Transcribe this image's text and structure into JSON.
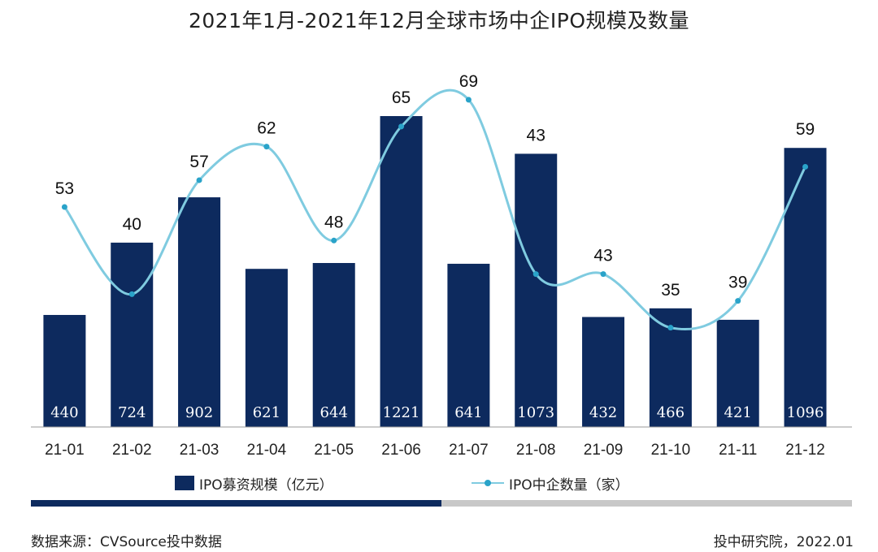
{
  "title": "2021年1月-2021年12月全球市场中企IPO规模及数量",
  "chart_data": {
    "type": "bar+line",
    "categories": [
      "21-01",
      "21-02",
      "21-03",
      "21-04",
      "21-05",
      "21-06",
      "21-07",
      "21-08",
      "21-09",
      "21-10",
      "21-11",
      "21-12"
    ],
    "series": [
      {
        "name": "IPO募资规模（亿元）",
        "type": "bar",
        "values": [
          440,
          724,
          902,
          621,
          644,
          1221,
          641,
          1073,
          432,
          466,
          421,
          1096
        ]
      },
      {
        "name": "IPO中企数量（家）",
        "type": "line",
        "values": [
          53,
          40,
          57,
          62,
          48,
          65,
          69,
          43,
          43,
          35,
          39,
          59
        ]
      }
    ],
    "bar_range": [
      0,
      1300
    ],
    "line_range": [
      0,
      80
    ]
  },
  "legend": {
    "bar_label": "IPO募资规模（亿元）",
    "line_label": "IPO中企数量（家）"
  },
  "progress_fraction": 0.5,
  "footer": {
    "source": "数据来源：CVSource投中数据",
    "credit": "投中研究院，2022.01"
  },
  "colors": {
    "bar": "#0d2a5e",
    "line": "#7fcbe0",
    "marker": "#2aa3c9",
    "track": "#c8c8c8"
  }
}
